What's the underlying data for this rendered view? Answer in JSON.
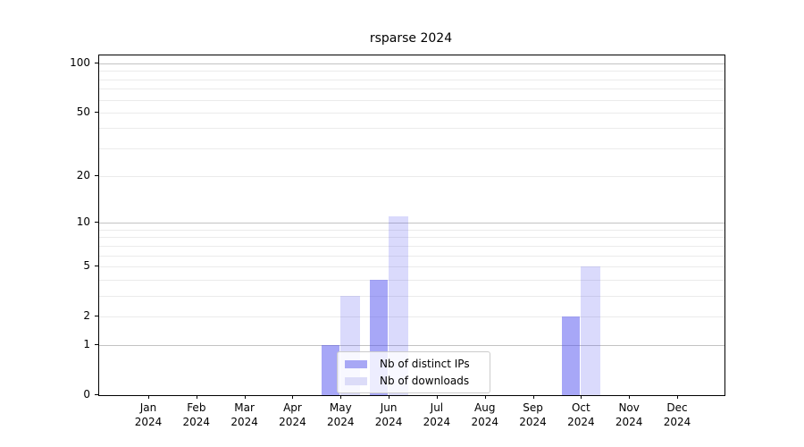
{
  "figure": {
    "background": "#ffffff"
  },
  "chart_data": {
    "type": "bar",
    "title": "rsparse 2024",
    "categories": [
      "Jan",
      "Feb",
      "Mar",
      "Apr",
      "May",
      "Jun",
      "Jul",
      "Aug",
      "Sep",
      "Oct",
      "Nov",
      "Dec"
    ],
    "x_year_label": "2024",
    "series": [
      {
        "name": "Nb of distinct IPs",
        "fill": "#5050f0",
        "fill_opacity": 0.5,
        "swatch_color": "#a8a8f5",
        "values": [
          0,
          0,
          0,
          0,
          1,
          4,
          0,
          0,
          0,
          2,
          0,
          0
        ]
      },
      {
        "name": "Nb of downloads",
        "fill": "#5050f0",
        "fill_opacity": 0.21,
        "swatch_color": "#dcdcf8",
        "values": [
          0,
          0,
          0,
          0,
          3,
          11,
          0,
          0,
          0,
          5,
          0,
          0
        ]
      }
    ],
    "yscale": "log1p",
    "ylim": [
      0,
      100
    ],
    "yticks": [
      0,
      1,
      2,
      5,
      10,
      20,
      50,
      100
    ],
    "grid_major": [
      1,
      10,
      100
    ],
    "grid_minor": [
      2,
      3,
      4,
      5,
      6,
      7,
      8,
      9,
      20,
      30,
      40,
      50,
      60,
      70,
      80,
      90
    ],
    "grid_major_color": "#c3c3c3",
    "grid_minor_color": "#ebebeb",
    "legend_position": "lower center"
  }
}
